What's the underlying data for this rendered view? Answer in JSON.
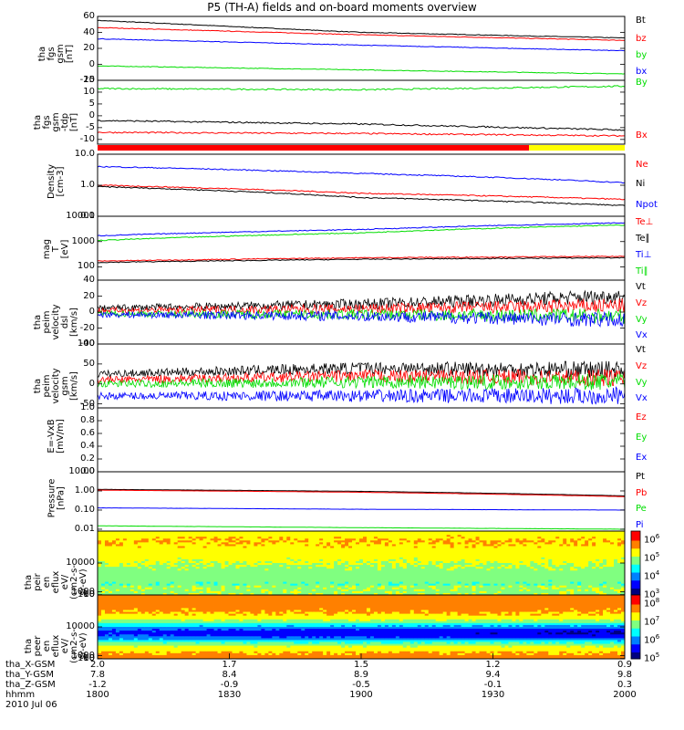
{
  "title": "P5 (TH-A) fields and on-board moments overview",
  "colors": {
    "black": "#000000",
    "red": "#ff0000",
    "green": "#00dd00",
    "blue": "#0000ff",
    "yellow": "#ffff00"
  },
  "chart_data": [
    {
      "type": "line",
      "id": "fgs_gsm",
      "ylabel": "tha\nfgs\ngsm\n[nT]",
      "yticks": [
        "60",
        "40",
        "20",
        "0",
        "-20"
      ],
      "ylim": [
        -20,
        60
      ],
      "series": [
        {
          "name": "Bt",
          "color": "black",
          "values": [
            55,
            40,
            33
          ]
        },
        {
          "name": "bz",
          "color": "red",
          "values": [
            46,
            37,
            30
          ]
        },
        {
          "name": "by",
          "color": "green",
          "values": [
            -2,
            -7,
            -12
          ]
        },
        {
          "name": "bx",
          "color": "blue",
          "values": [
            32,
            24,
            17
          ]
        }
      ]
    },
    {
      "type": "line",
      "id": "fgs_tdp",
      "ylabel": "tha\nfgs\ngsm\n-tdp\n[nT]",
      "yticks": [
        "15",
        "10",
        "5",
        "0",
        "-5",
        "-10"
      ],
      "ylim": [
        -12,
        15
      ],
      "series": [
        {
          "name": "By",
          "color": "green",
          "values": [
            11.5,
            11,
            12.5
          ]
        },
        {
          "name": "Bx",
          "color": "red",
          "values": [
            -7,
            -7.5,
            -8.5
          ]
        }
      ],
      "extra_series": [
        {
          "color": "black",
          "values": [
            -2,
            -3.5,
            -6
          ]
        }
      ]
    },
    {
      "type": "line",
      "id": "density",
      "ylabel": "Density\n[cm-3]",
      "log": true,
      "yticks": [
        "10.0",
        "1.0",
        "0.1"
      ],
      "ylim": [
        0.1,
        10
      ],
      "series": [
        {
          "name": "Ne",
          "color": "red",
          "values": [
            1.0,
            0.55,
            0.35
          ]
        },
        {
          "name": "Ni",
          "color": "black",
          "values": [
            0.9,
            0.4,
            0.22
          ]
        },
        {
          "name": "Npot",
          "color": "blue",
          "values": [
            4,
            2.4,
            1.2
          ]
        }
      ]
    },
    {
      "type": "line",
      "id": "temp",
      "ylabel": "mag\nT\n[eV]",
      "log": true,
      "yticks": [
        "10000",
        "1000",
        "100"
      ],
      "ylim": [
        30,
        10000
      ],
      "series": [
        {
          "name": "Te⊥",
          "color": "red",
          "values": [
            170,
            230,
            260
          ]
        },
        {
          "name": "Te∥",
          "color": "black",
          "values": [
            150,
            200,
            230
          ]
        },
        {
          "name": "Ti⊥",
          "color": "blue",
          "values": [
            1700,
            3000,
            5500
          ]
        },
        {
          "name": "Ti∥",
          "color": "green",
          "values": [
            1100,
            2200,
            4500
          ]
        }
      ]
    },
    {
      "type": "line",
      "id": "peim_dsl",
      "ylabel": "tha\npeim\nvelocity\ndsl\n[km/s]",
      "yticks": [
        "40",
        "20",
        "0",
        "-20",
        "-40"
      ],
      "ylim": [
        -40,
        40
      ],
      "series": [
        {
          "name": "Vt",
          "color": "black",
          "values": [
            5,
            10,
            20
          ]
        },
        {
          "name": "Vz",
          "color": "red",
          "values": [
            2,
            4,
            8
          ]
        },
        {
          "name": "Vy",
          "color": "green",
          "values": [
            -2,
            -3,
            -5
          ]
        },
        {
          "name": "Vx",
          "color": "blue",
          "values": [
            -3,
            -5,
            -10
          ]
        }
      ]
    },
    {
      "type": "line",
      "id": "peim_gsm",
      "ylabel": "tha\npeim\nvelocity\ngsm\n[km/s]",
      "yticks": [
        "100",
        "50",
        "0",
        "-50"
      ],
      "ylim": [
        -60,
        100
      ],
      "series": [
        {
          "name": "Vt",
          "color": "black",
          "values": [
            25,
            40,
            35
          ]
        },
        {
          "name": "Vz",
          "color": "red",
          "values": [
            10,
            20,
            15
          ]
        },
        {
          "name": "Vy",
          "color": "green",
          "values": [
            0,
            5,
            5
          ]
        },
        {
          "name": "Vx",
          "color": "blue",
          "values": [
            -30,
            -30,
            -30
          ]
        }
      ]
    },
    {
      "type": "line",
      "id": "efield",
      "ylabel": "E=-VxB\n[mV/m]",
      "yticks": [
        "1.0",
        "0.8",
        "0.6",
        "0.4",
        "0.2",
        "0.0"
      ],
      "ylim": [
        0,
        1
      ],
      "series": [
        {
          "name": "Ez",
          "color": "red",
          "values": []
        },
        {
          "name": "Ey",
          "color": "green",
          "values": []
        },
        {
          "name": "Ex",
          "color": "blue",
          "values": []
        }
      ]
    },
    {
      "type": "line",
      "id": "pressure",
      "ylabel": "Pressure\n[nPa]",
      "log": true,
      "yticks": [
        "10.00",
        "1.00",
        "0.10",
        "0.01"
      ],
      "ylim": [
        0.008,
        10
      ],
      "series": [
        {
          "name": "Pt",
          "color": "black",
          "values": [
            1.2,
            0.95,
            0.55
          ]
        },
        {
          "name": "Pb",
          "color": "red",
          "values": [
            1.1,
            0.85,
            0.5
          ]
        },
        {
          "name": "Pe",
          "color": "green",
          "values": [
            0.015,
            0.012,
            0.01
          ]
        },
        {
          "name": "Pi",
          "color": "blue",
          "values": [
            0.13,
            0.11,
            0.1
          ]
        }
      ]
    },
    {
      "type": "heatmap",
      "id": "peir",
      "ylabel": "tha\npeir\nen\neflux\neV/\n(cm^2-s-\nsr-eV)",
      "yticks": [
        "10000",
        "1000",
        "100",
        "10"
      ],
      "ylim": [
        10,
        20000
      ],
      "colorbar": [
        "10^6",
        "10^5",
        "10^4",
        "10^3"
      ]
    },
    {
      "type": "heatmap",
      "id": "peer",
      "ylabel": "tha\npeer\nen\neflux\neV/\n(cm^2-s-\nsr-eV)",
      "yticks": [
        "10000",
        "1000",
        "100",
        "10"
      ],
      "ylim": [
        10,
        20000
      ],
      "colorbar": [
        "10^8",
        "10^7",
        "10^6",
        "10^5"
      ]
    }
  ],
  "xaxis": {
    "rows": [
      {
        "label": "tha_X-GSM",
        "values": [
          "2.0",
          "1.7",
          "1.5",
          "1.2",
          "0.9"
        ]
      },
      {
        "label": "tha_Y-GSM",
        "values": [
          "7.8",
          "8.4",
          "8.9",
          "9.4",
          "9.8"
        ]
      },
      {
        "label": "tha_Z-GSM",
        "values": [
          "-1.2",
          "-0.9",
          "-0.5",
          "-0.1",
          "0.3"
        ]
      },
      {
        "label": "hhmm",
        "values": [
          "1800",
          "1830",
          "1900",
          "1930",
          "2000"
        ]
      }
    ],
    "date": "2010 Jul 06"
  }
}
